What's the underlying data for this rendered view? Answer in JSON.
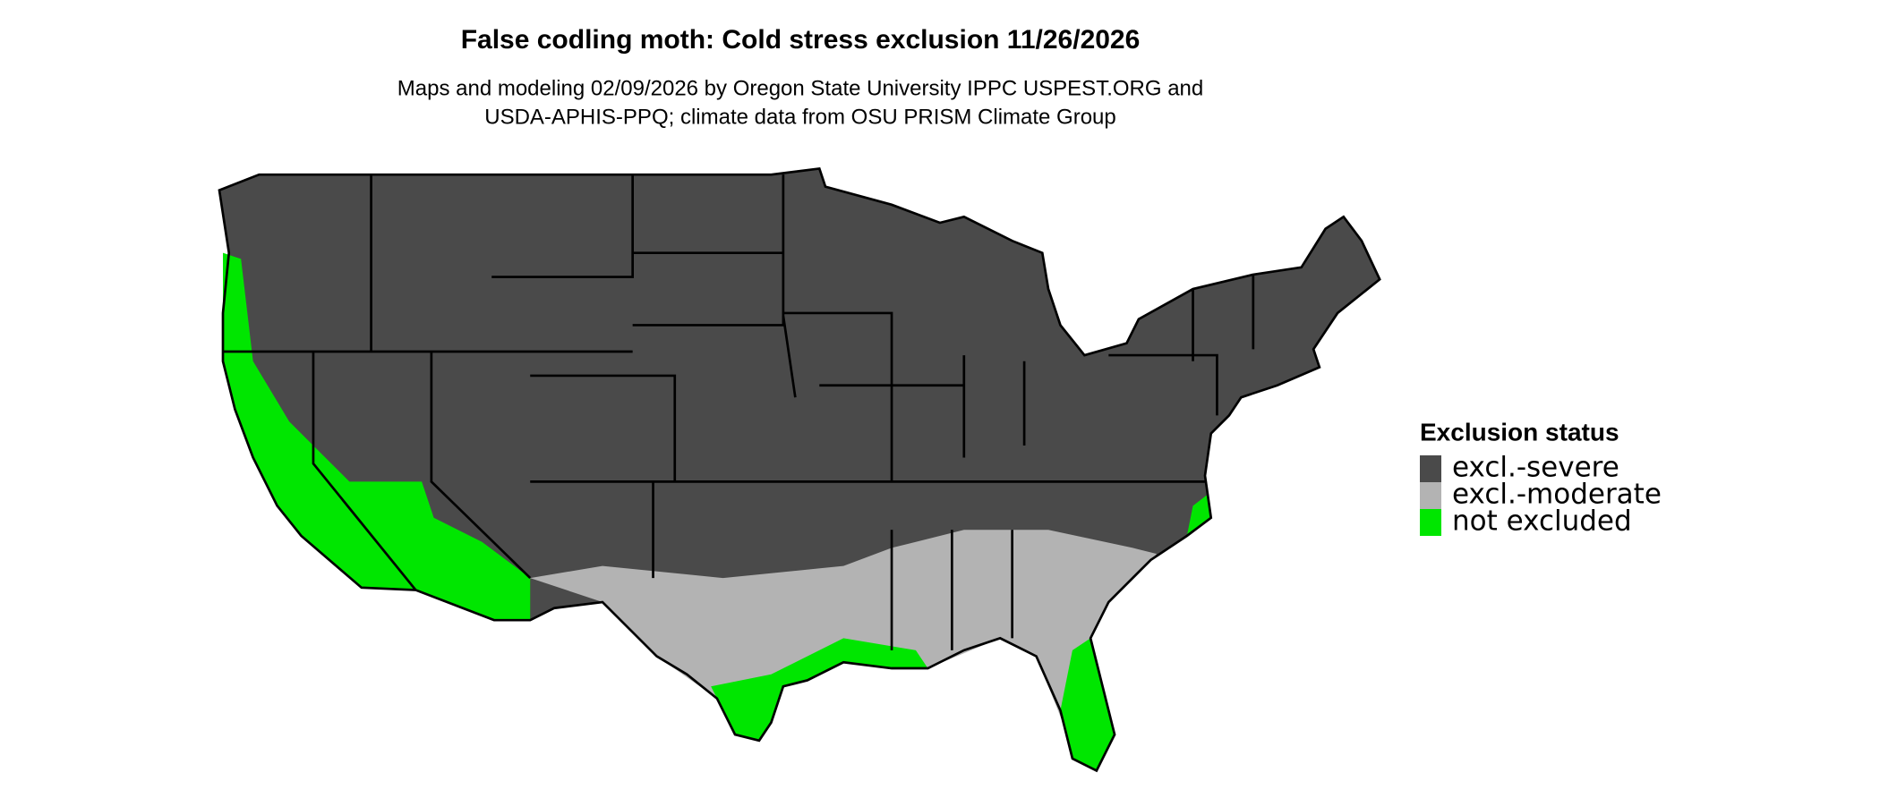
{
  "title": "False codling moth: Cold stress exclusion 11/26/2026",
  "subtitle": [
    "Maps and modeling 02/09/2026 by Oregon State University IPPC USPEST.ORG and",
    "USDA-APHIS-PPQ; climate data from OSU PRISM Climate Group"
  ],
  "legend": {
    "title": "Exclusion status",
    "items": [
      {
        "label": "excl.-severe",
        "color": "#4a4a4a"
      },
      {
        "label": "excl.-moderate",
        "color": "#b3b3b3"
      },
      {
        "label": "not excluded",
        "color": "#00e600"
      }
    ]
  }
}
